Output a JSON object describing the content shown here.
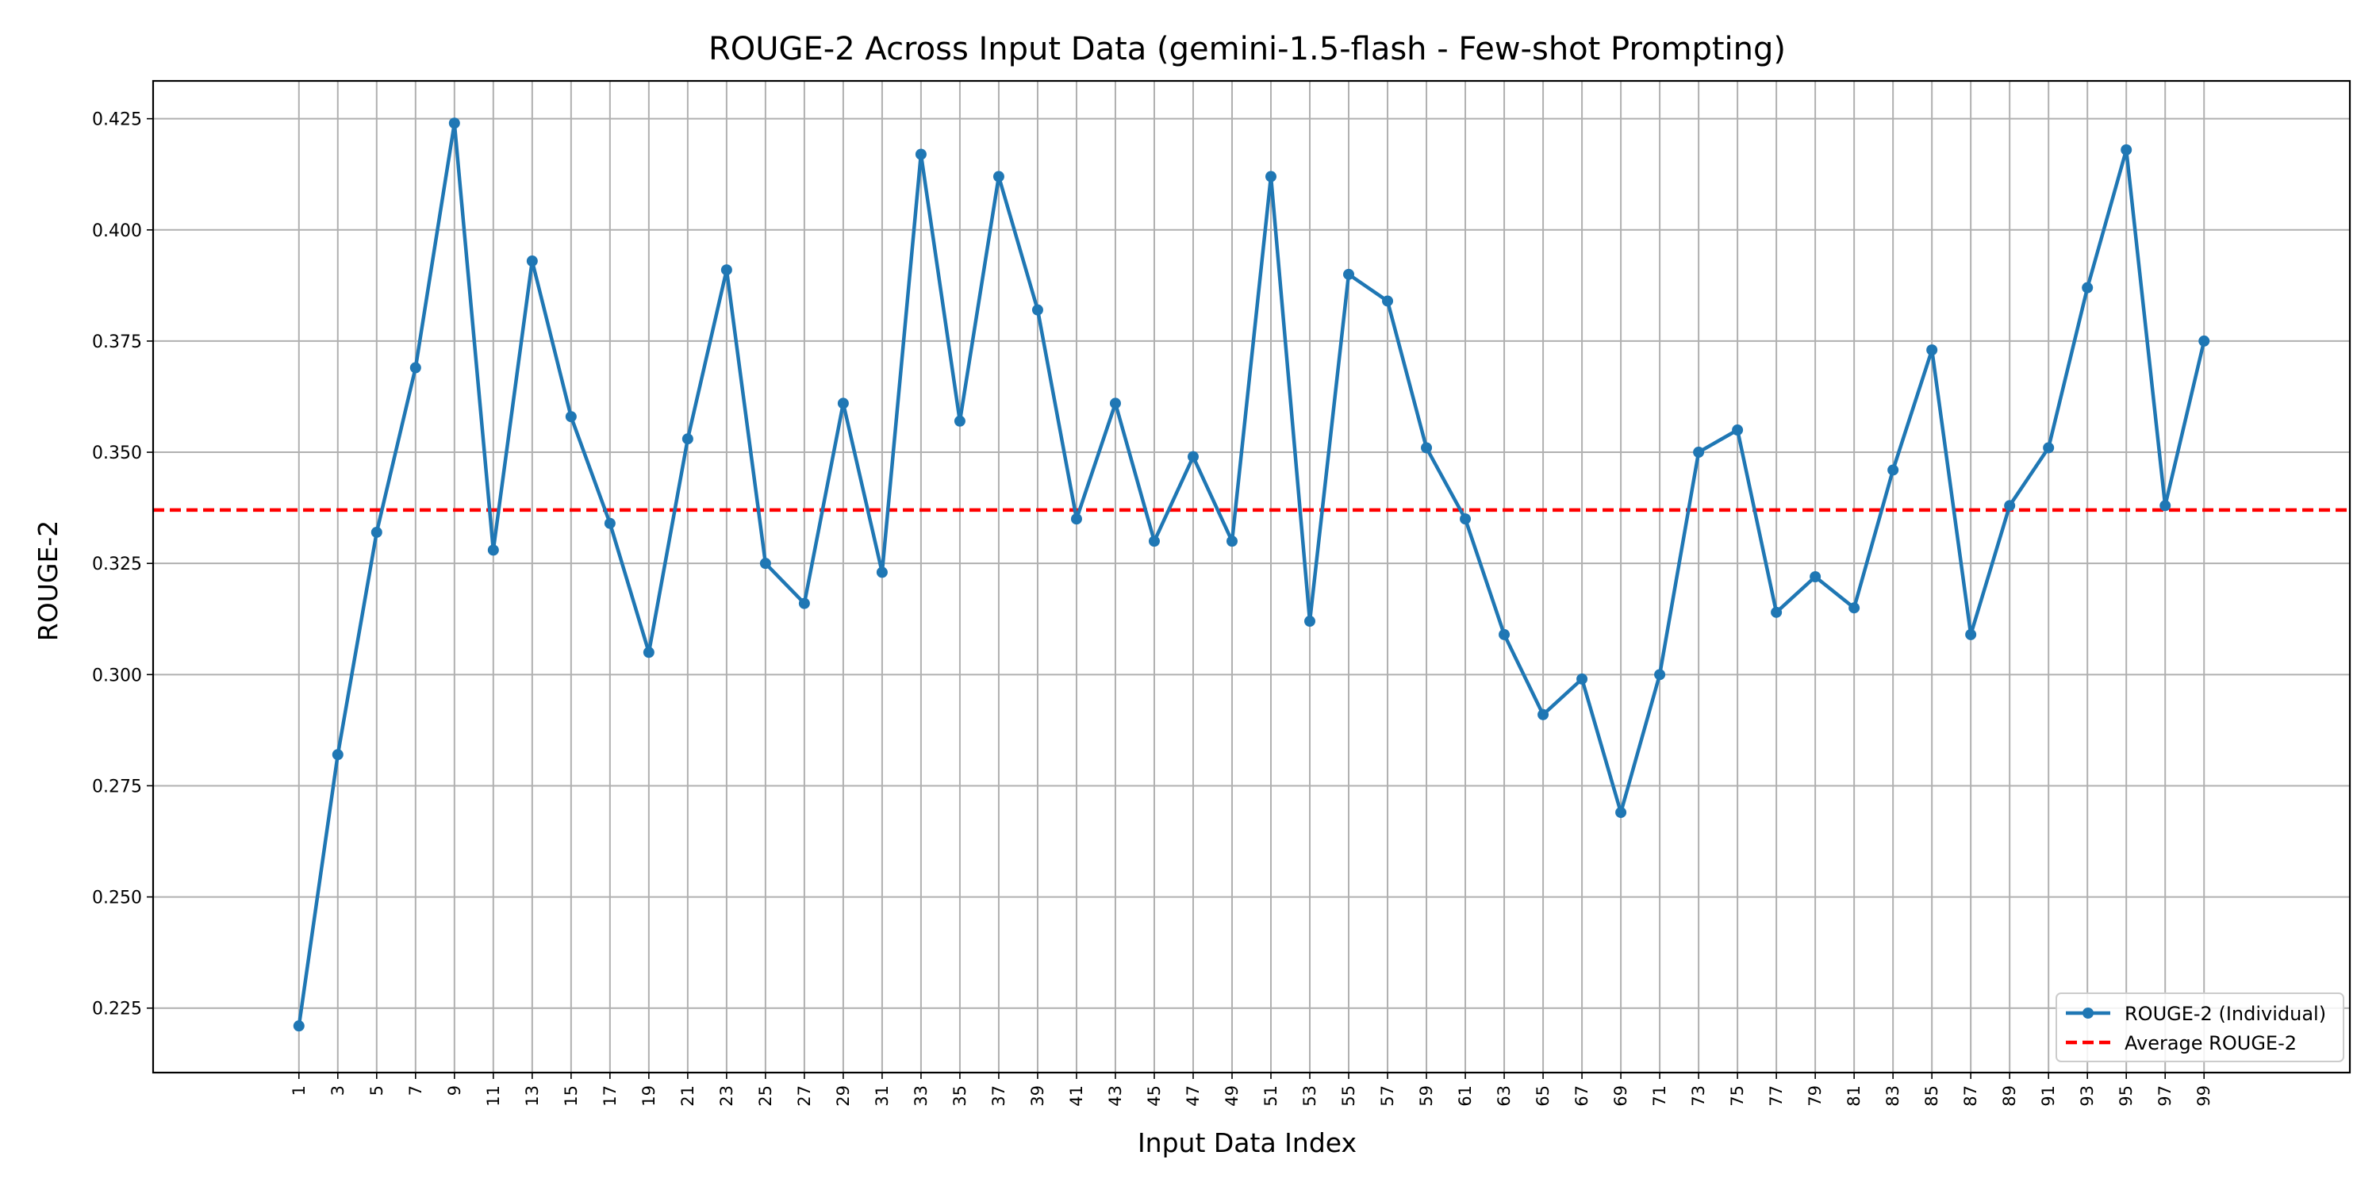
{
  "chart_data": {
    "type": "line",
    "title": "ROUGE-2 Across Input Data (gemini-1.5-flash - Few-shot Prompting)",
    "xlabel": "Input Data Index",
    "ylabel": "ROUGE-2",
    "x": [
      1,
      3,
      5,
      7,
      9,
      11,
      13,
      15,
      17,
      19,
      21,
      23,
      25,
      27,
      29,
      31,
      33,
      35,
      37,
      39,
      41,
      43,
      45,
      47,
      49,
      51,
      53,
      55,
      57,
      59,
      61,
      63,
      65,
      67,
      69,
      71,
      73,
      75,
      77,
      79,
      81,
      83,
      85,
      87,
      89,
      91,
      93,
      95,
      97,
      99
    ],
    "xticks": [
      "1",
      "3",
      "5",
      "7",
      "9",
      "11",
      "13",
      "15",
      "17",
      "19",
      "21",
      "23",
      "25",
      "27",
      "29",
      "31",
      "33",
      "35",
      "37",
      "39",
      "41",
      "43",
      "45",
      "47",
      "49",
      "51",
      "53",
      "55",
      "57",
      "59",
      "61",
      "63",
      "65",
      "67",
      "69",
      "71",
      "73",
      "75",
      "77",
      "79",
      "81",
      "83",
      "85",
      "87",
      "89",
      "91",
      "93",
      "95",
      "97",
      "99"
    ],
    "xlim": [
      -6.5,
      106.5
    ],
    "ylim": [
      0.2105,
      0.4335
    ],
    "yticks": [
      0.225,
      0.25,
      0.275,
      0.3,
      0.325,
      0.35,
      0.375,
      0.4,
      0.425
    ],
    "ytick_labels": [
      "0.225",
      "0.250",
      "0.275",
      "0.300",
      "0.325",
      "0.350",
      "0.375",
      "0.400",
      "0.425"
    ],
    "grid": true,
    "legend_position": "lower-right",
    "series": [
      {
        "name": "ROUGE-2 (Individual)",
        "color": "#1f77b4",
        "style": "solid-with-markers",
        "values": [
          0.221,
          0.282,
          0.332,
          0.369,
          0.424,
          0.328,
          0.393,
          0.358,
          0.334,
          0.305,
          0.353,
          0.391,
          0.325,
          0.316,
          0.361,
          0.323,
          0.417,
          0.357,
          0.412,
          0.382,
          0.335,
          0.361,
          0.33,
          0.349,
          0.33,
          0.412,
          0.312,
          0.39,
          0.384,
          0.351,
          0.335,
          0.309,
          0.291,
          0.299,
          0.269,
          0.3,
          0.35,
          0.355,
          0.314,
          0.322,
          0.315,
          0.346,
          0.373,
          0.309,
          0.338,
          0.351,
          0.387,
          0.418,
          0.338,
          0.375
        ]
      },
      {
        "name": "Average ROUGE-2",
        "color": "#ff0000",
        "style": "dashed",
        "value": 0.337
      }
    ]
  }
}
